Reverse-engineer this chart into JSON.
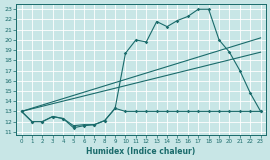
{
  "xlabel": "Humidex (Indice chaleur)",
  "xlim": [
    -0.5,
    23.5
  ],
  "ylim": [
    10.7,
    23.5
  ],
  "yticks": [
    11,
    12,
    13,
    14,
    15,
    16,
    17,
    18,
    19,
    20,
    21,
    22,
    23
  ],
  "xticks": [
    0,
    1,
    2,
    3,
    4,
    5,
    6,
    7,
    8,
    9,
    10,
    11,
    12,
    13,
    14,
    15,
    16,
    17,
    18,
    19,
    20,
    21,
    22,
    23
  ],
  "bg_color": "#c8e6e6",
  "grid_color": "#b0d4d4",
  "line_color": "#1a6b6b",
  "curve1_x": [
    0,
    1,
    2,
    3,
    4,
    5,
    6,
    7,
    8,
    9,
    10,
    11,
    12,
    13,
    14,
    15,
    16,
    17,
    18,
    19,
    20,
    21,
    22,
    23
  ],
  "curve1_y": [
    13.0,
    12.0,
    12.0,
    12.5,
    12.3,
    11.4,
    11.6,
    11.7,
    12.1,
    13.3,
    18.7,
    20.0,
    19.8,
    21.8,
    21.3,
    21.9,
    22.3,
    23.0,
    23.0,
    20.0,
    18.8,
    17.0,
    14.8,
    13.0
  ],
  "curve2_x": [
    0,
    1,
    2,
    3,
    4,
    5,
    6,
    7,
    8,
    9,
    10,
    11,
    12,
    13,
    14,
    15,
    16,
    17,
    18,
    19,
    20,
    21,
    22,
    23
  ],
  "curve2_y": [
    13.0,
    12.0,
    12.0,
    12.5,
    12.3,
    11.6,
    11.7,
    11.7,
    12.1,
    13.3,
    13.0,
    13.0,
    13.0,
    13.0,
    13.0,
    13.0,
    13.0,
    13.0,
    13.0,
    13.0,
    13.0,
    13.0,
    13.0,
    13.0
  ],
  "trend1_x": [
    0,
    23
  ],
  "trend1_y": [
    13.0,
    20.2
  ],
  "trend2_x": [
    0,
    23
  ],
  "trend2_y": [
    13.0,
    18.8
  ]
}
